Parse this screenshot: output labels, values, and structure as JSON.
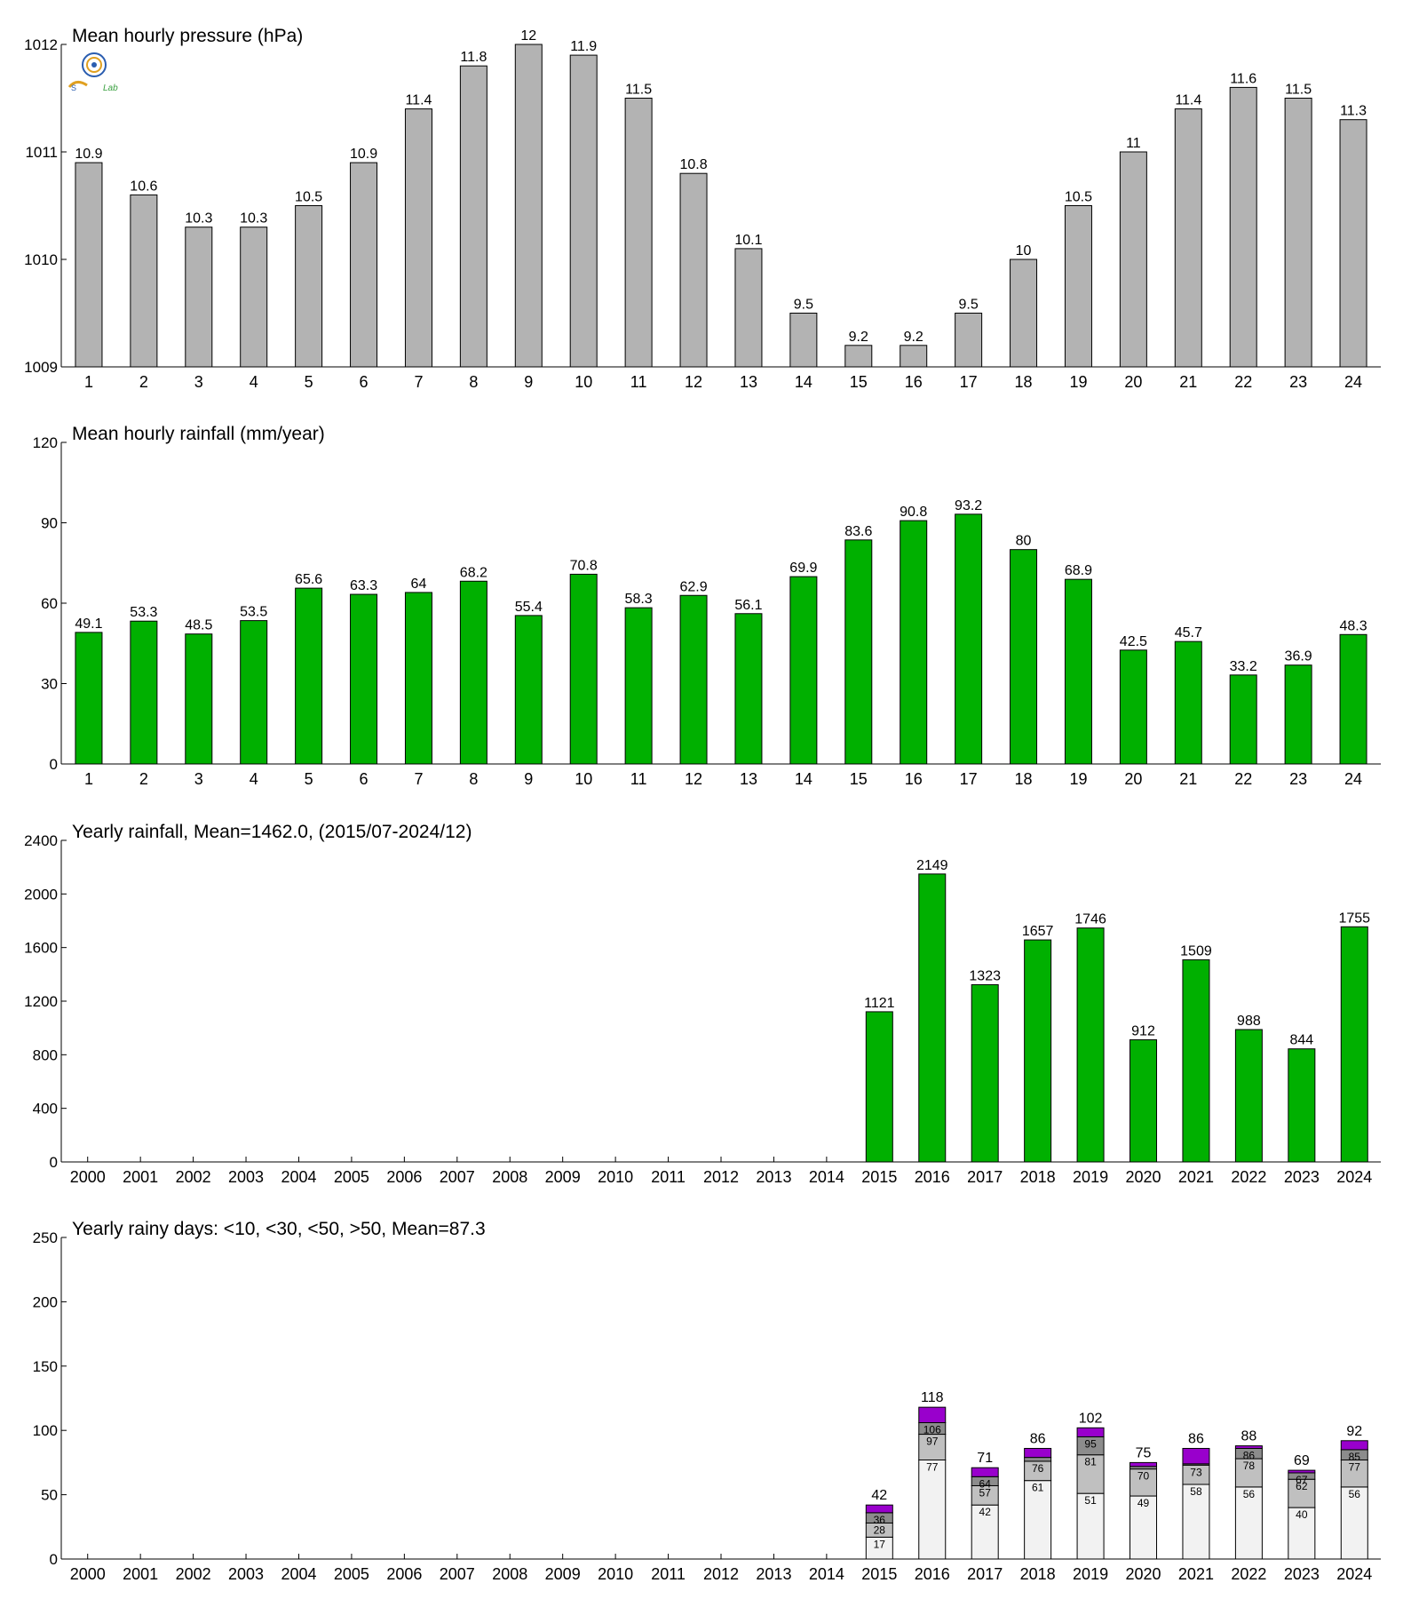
{
  "logo": {
    "name": "lab-logo",
    "text": "Lab",
    "colors": [
      "#2a5db0",
      "#e0a020",
      "#3aa040"
    ]
  },
  "chart_data": [
    {
      "id": "pressure",
      "type": "bar",
      "title": "Mean hourly pressure (hPa)",
      "categories": [
        "1",
        "2",
        "3",
        "4",
        "5",
        "6",
        "7",
        "8",
        "9",
        "10",
        "11",
        "12",
        "13",
        "14",
        "15",
        "16",
        "17",
        "18",
        "19",
        "20",
        "21",
        "22",
        "23",
        "24"
      ],
      "values": [
        1010.9,
        1010.6,
        1010.3,
        1010.3,
        1010.5,
        1010.9,
        1011.4,
        1011.8,
        1012.0,
        1011.9,
        1011.5,
        1010.8,
        1010.1,
        1009.5,
        1009.2,
        1009.2,
        1009.5,
        1010.0,
        1010.5,
        1011.0,
        1011.4,
        1011.6,
        1011.5,
        1011.3
      ],
      "data_labels": [
        "10.9",
        "10.6",
        "10.3",
        "10.3",
        "10.5",
        "10.9",
        "11.4",
        "11.8",
        "12",
        "11.9",
        "11.5",
        "10.8",
        "10.1",
        "9.5",
        "9.2",
        "9.2",
        "9.5",
        "10",
        "10.5",
        "11",
        "11.4",
        "11.6",
        "11.5",
        "11.3"
      ],
      "ylim": [
        1009,
        1012
      ],
      "yticks": [
        1009,
        1010,
        1011,
        1012
      ],
      "color": "#b3b3b3"
    },
    {
      "id": "hourly-rainfall",
      "type": "bar",
      "title": "Mean hourly rainfall (mm/year)",
      "categories": [
        "1",
        "2",
        "3",
        "4",
        "5",
        "6",
        "7",
        "8",
        "9",
        "10",
        "11",
        "12",
        "13",
        "14",
        "15",
        "16",
        "17",
        "18",
        "19",
        "20",
        "21",
        "22",
        "23",
        "24"
      ],
      "values": [
        49.1,
        53.3,
        48.5,
        53.5,
        65.6,
        63.3,
        64,
        68.2,
        55.4,
        70.8,
        58.3,
        62.9,
        56.1,
        69.9,
        83.6,
        90.8,
        93.2,
        80,
        68.9,
        42.5,
        45.7,
        33.2,
        36.9,
        48.3
      ],
      "data_labels": [
        "49.1",
        "53.3",
        "48.5",
        "53.5",
        "65.6",
        "63.3",
        "64",
        "68.2",
        "55.4",
        "70.8",
        "58.3",
        "62.9",
        "56.1",
        "69.9",
        "83.6",
        "90.8",
        "93.2",
        "80",
        "68.9",
        "42.5",
        "45.7",
        "33.2",
        "36.9",
        "48.3"
      ],
      "ylim": [
        0,
        120
      ],
      "yticks": [
        0,
        30,
        60,
        90,
        120
      ],
      "color": "#00b000"
    },
    {
      "id": "yearly-rainfall",
      "type": "bar",
      "title": "Yearly rainfall, Mean=1462.0, (2015/07-2024/12)",
      "categories": [
        "2000",
        "2001",
        "2002",
        "2003",
        "2004",
        "2005",
        "2006",
        "2007",
        "2008",
        "2009",
        "2010",
        "2011",
        "2012",
        "2013",
        "2014",
        "2015",
        "2016",
        "2017",
        "2018",
        "2019",
        "2020",
        "2021",
        "2022",
        "2023",
        "2024"
      ],
      "values": [
        null,
        null,
        null,
        null,
        null,
        null,
        null,
        null,
        null,
        null,
        null,
        null,
        null,
        null,
        null,
        1121,
        2149,
        1323,
        1657,
        1746,
        912,
        1509,
        988,
        844,
        1755
      ],
      "data_labels": [
        "",
        "",
        "",
        "",
        "",
        "",
        "",
        "",
        "",
        "",
        "",
        "",
        "",
        "",
        "",
        "1121",
        "2149",
        "1323",
        "1657",
        "1746",
        "912",
        "1509",
        "988",
        "844",
        "1755"
      ],
      "ylim": [
        0,
        2400
      ],
      "yticks": [
        0,
        400,
        800,
        1200,
        1600,
        2000,
        2400
      ],
      "color": "#00b000"
    },
    {
      "id": "rainy-days",
      "type": "stacked-bar",
      "title": "Yearly rainy days: <10, <30, <50, >50, Mean=87.3",
      "categories": [
        "2000",
        "2001",
        "2002",
        "2003",
        "2004",
        "2005",
        "2006",
        "2007",
        "2008",
        "2009",
        "2010",
        "2011",
        "2012",
        "2013",
        "2014",
        "2015",
        "2016",
        "2017",
        "2018",
        "2019",
        "2020",
        "2021",
        "2022",
        "2023",
        "2024"
      ],
      "cumulative": [
        [
          null,
          null,
          null,
          null
        ],
        [
          null,
          null,
          null,
          null
        ],
        [
          null,
          null,
          null,
          null
        ],
        [
          null,
          null,
          null,
          null
        ],
        [
          null,
          null,
          null,
          null
        ],
        [
          null,
          null,
          null,
          null
        ],
        [
          null,
          null,
          null,
          null
        ],
        [
          null,
          null,
          null,
          null
        ],
        [
          null,
          null,
          null,
          null
        ],
        [
          null,
          null,
          null,
          null
        ],
        [
          null,
          null,
          null,
          null
        ],
        [
          null,
          null,
          null,
          null
        ],
        [
          null,
          null,
          null,
          null
        ],
        [
          null,
          null,
          null,
          null
        ],
        [
          null,
          null,
          null,
          null
        ],
        [
          17,
          28,
          36,
          42
        ],
        [
          77,
          97,
          106,
          118
        ],
        [
          42,
          57,
          64,
          71
        ],
        [
          61,
          76,
          79,
          86
        ],
        [
          51,
          81,
          95,
          102
        ],
        [
          49,
          70,
          72,
          75
        ],
        [
          58,
          73,
          74,
          86
        ],
        [
          56,
          78,
          86,
          88
        ],
        [
          40,
          62,
          67,
          69
        ],
        [
          56,
          77,
          85,
          92
        ]
      ],
      "inner_labels": [
        [
          "",
          "",
          ""
        ],
        [
          "",
          "",
          ""
        ],
        [
          "",
          "",
          ""
        ],
        [
          "",
          "",
          ""
        ],
        [
          "",
          "",
          ""
        ],
        [
          "",
          "",
          ""
        ],
        [
          "",
          "",
          ""
        ],
        [
          "",
          "",
          ""
        ],
        [
          "",
          "",
          ""
        ],
        [
          "",
          "",
          ""
        ],
        [
          "",
          "",
          ""
        ],
        [
          "",
          "",
          ""
        ],
        [
          "",
          "",
          ""
        ],
        [
          "",
          "",
          ""
        ],
        [
          "",
          "",
          ""
        ],
        [
          "17",
          "28",
          "36"
        ],
        [
          "77",
          "97",
          "106"
        ],
        [
          "42",
          "57",
          "64"
        ],
        [
          "61",
          "76",
          ""
        ],
        [
          "51",
          "81",
          "95"
        ],
        [
          "49",
          "70",
          ""
        ],
        [
          "58",
          "73",
          ""
        ],
        [
          "56",
          "78",
          "86"
        ],
        [
          "40",
          "62",
          "67"
        ],
        [
          "56",
          "77",
          "85"
        ]
      ],
      "total_labels": [
        "",
        "",
        "",
        "",
        "",
        "",
        "",
        "",
        "",
        "",
        "",
        "",
        "",
        "",
        "",
        "42",
        "118",
        "71",
        "86",
        "102",
        "75",
        "86",
        "88",
        "69",
        "92"
      ],
      "ylim": [
        0,
        250
      ],
      "yticks": [
        0,
        50,
        100,
        150,
        200,
        250
      ],
      "colors": [
        "#f2f2f2",
        "#c0c0c0",
        "#8c8c8c",
        "#9900cc"
      ]
    }
  ]
}
